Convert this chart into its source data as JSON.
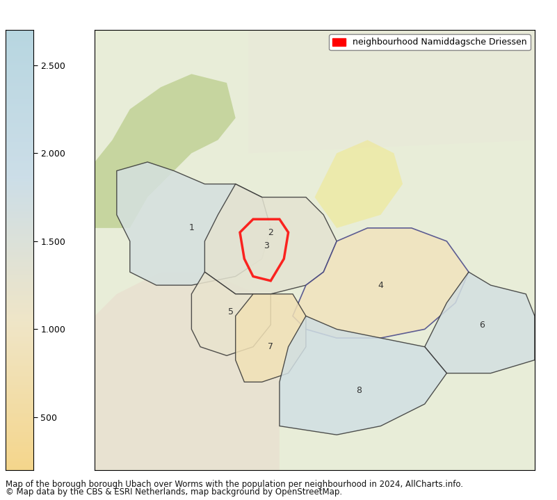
{
  "title": "",
  "caption_line1": "Map of the borough borough Ubach over Worms with the population per neighbourhood in 2024, AllCharts.info.",
  "caption_line2": "© Map data by the CBS & ESRI Netherlands, map background by OpenStreetMap.",
  "legend_label": "neighbourhood Namiddagsche Driessen",
  "colorbar_ticks": [
    500,
    1000,
    1500,
    2000,
    2500
  ],
  "colorbar_min": 200,
  "colorbar_max": 2700,
  "neighbourhood_colors": {
    "1": "#f5d48a",
    "2": "#d4c9a8",
    "3_highlight": "#ff0000",
    "3_fill": "#d4c9a8",
    "4": "#add8e6",
    "5": "#c8bfa0",
    "6": "#e8d090",
    "7": "#b8d4e8",
    "8": "#e8d090"
  },
  "map_bg_color": "#e8f0d8",
  "fig_bg_color": "#ffffff",
  "colorbar_colors": [
    "#f5d48a",
    "#e8e0c0",
    "#c8dce8",
    "#b0ccd8"
  ],
  "colorbar_bottom_color": "#f5d590",
  "colorbar_top_color": "#c8dce8",
  "caption_fontsize": 8.5,
  "legend_fontsize": 9,
  "tick_fontsize": 9
}
